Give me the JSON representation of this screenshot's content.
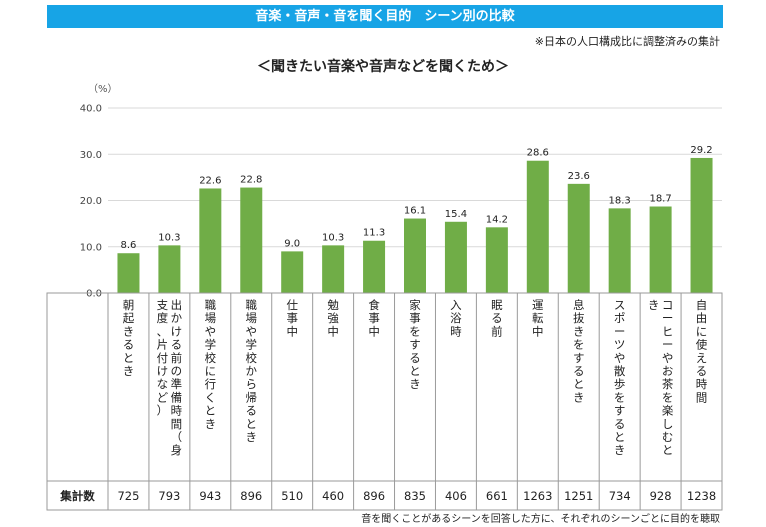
{
  "banner": "音楽・音声・音を聞く目的　シーン別の比較",
  "note": "※日本の人口構成比に調整済みの集計",
  "subtitle": "＜聞きたい音楽や音声などを聞くため＞",
  "unit_label": "（%）",
  "footer": "音を聞くことがあるシーンを回答した方に、それぞれのシーンごとに目的を聴取",
  "colors": {
    "bar": "#70ad47",
    "banner": "#17a4e6"
  },
  "chart_data": {
    "type": "bar",
    "title": "＜聞きたい音楽や音声などを聞くため＞",
    "ylabel": "（%）",
    "ylim": [
      0,
      40
    ],
    "yticks": [
      "0.0",
      "10.0",
      "20.0",
      "30.0",
      "40.0"
    ],
    "ytick_values": [
      0,
      10,
      20,
      30,
      40
    ],
    "categories": [
      "朝起きるとき",
      "出かける前の準備時間（身支度、片付けなど）",
      "職場や学校に行くとき",
      "職場や学校から帰るとき",
      "仕事中",
      "勉強中",
      "食事中",
      "家事をするとき",
      "入浴時",
      "眠る前",
      "運転中",
      "息抜きをするとき",
      "スポーツや散歩をするとき",
      "コーヒーやお茶を楽しむとき",
      "自由に使える時間"
    ],
    "label_columns": [
      [
        "朝起きるとき"
      ],
      [
        "出かける前の準備時間（身",
        "支度、片付けなど）"
      ],
      [
        "職場や学校に行くとき"
      ],
      [
        "職場や学校から帰るとき"
      ],
      [
        "仕事中"
      ],
      [
        "勉強中"
      ],
      [
        "食事中"
      ],
      [
        "家事をするとき"
      ],
      [
        "入浴時"
      ],
      [
        "眠る前"
      ],
      [
        "運転中"
      ],
      [
        "息抜きをするとき"
      ],
      [
        "スポーツや散歩をするとき"
      ],
      [
        "コーヒーやお茶を楽しむと",
        "き"
      ],
      [
        "自由に使える時間"
      ]
    ],
    "values": [
      8.6,
      10.3,
      22.6,
      22.8,
      9.0,
      10.3,
      11.3,
      16.1,
      15.4,
      14.2,
      28.6,
      23.6,
      18.3,
      18.7,
      29.2
    ],
    "value_labels": [
      "8.6",
      "10.3",
      "22.6",
      "22.8",
      "9.0",
      "10.3",
      "11.3",
      "16.1",
      "15.4",
      "14.2",
      "28.6",
      "23.6",
      "18.3",
      "18.7",
      "29.2"
    ],
    "totals_label": "集計数",
    "totals": [
      725,
      793,
      943,
      896,
      510,
      460,
      896,
      835,
      406,
      661,
      1263,
      1251,
      734,
      928,
      1238
    ]
  }
}
